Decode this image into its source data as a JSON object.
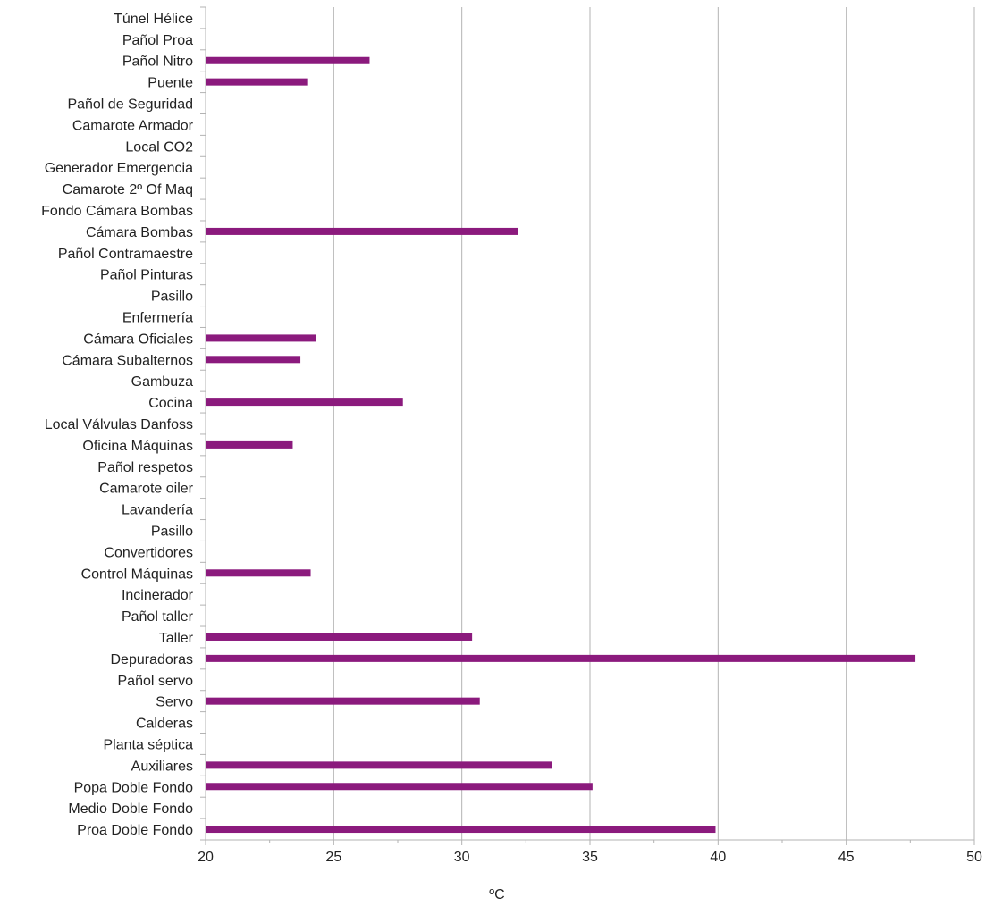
{
  "chart_data": {
    "type": "bar",
    "orientation": "horizontal",
    "title": "",
    "xlabel": "ºC",
    "ylabel": "",
    "xlim": [
      20,
      50
    ],
    "x_ticks": [
      20,
      25,
      30,
      35,
      40,
      45,
      50
    ],
    "grid": "vertical",
    "legend": "none",
    "bar_color": "#8b1a7d",
    "categories": [
      "Proa Doble Fondo",
      "Medio Doble Fondo",
      "Popa Doble Fondo",
      "Auxiliares",
      "Planta séptica",
      "Calderas",
      "Servo",
      "Pañol servo",
      "Depuradoras",
      "Taller",
      "Pañol taller",
      "Incinerador",
      "Control Máquinas",
      "Convertidores",
      "Pasillo",
      "Lavandería",
      "Camarote oiler",
      "Pañol respetos",
      "Oficina Máquinas",
      "Local Válvulas Danfoss",
      "Cocina",
      "Gambuza",
      "Cámara Subalternos",
      "Cámara Oficiales",
      "Enfermería",
      "Pasillo",
      "Pañol Pinturas",
      "Pañol Contramaestre",
      "Cámara Bombas",
      "Fondo Cámara Bombas",
      "Camarote 2º Of Maq",
      "Generador Emergencia",
      "Local CO2",
      "Camarote Armador",
      "Pañol de Seguridad",
      "Puente",
      "Pañol Nitro",
      "Pañol Proa",
      "Túnel Hélice"
    ],
    "values": [
      39.9,
      null,
      35.1,
      33.5,
      null,
      null,
      30.7,
      null,
      47.7,
      30.4,
      null,
      null,
      24.1,
      null,
      null,
      null,
      null,
      null,
      23.4,
      null,
      27.7,
      null,
      23.7,
      24.3,
      null,
      null,
      null,
      null,
      32.2,
      null,
      null,
      null,
      null,
      null,
      null,
      24.0,
      26.4,
      null,
      null
    ]
  }
}
